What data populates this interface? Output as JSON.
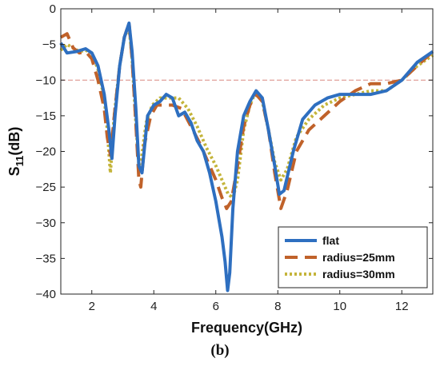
{
  "caption": "(b)",
  "chart_data": {
    "type": "line",
    "xlabel": "Frequency(GHz)",
    "ylabel_main": "S",
    "ylabel_sub": "11",
    "ylabel_unit": "(dB)",
    "xlim": [
      1,
      13
    ],
    "ylim": [
      -40,
      0
    ],
    "xticks": [
      2,
      4,
      6,
      8,
      10,
      12
    ],
    "yticks": [
      0,
      -5,
      -10,
      -15,
      -20,
      -25,
      -30,
      -35,
      -40
    ],
    "reference_line": {
      "y": -10,
      "color": "#d98880"
    },
    "legend": {
      "placement": "bottom-right"
    },
    "series": [
      {
        "name": "flat",
        "color": "#2e6fc0",
        "style": "solid",
        "x": [
          1.0,
          1.2,
          1.5,
          1.8,
          2.0,
          2.2,
          2.4,
          2.55,
          2.65,
          2.75,
          2.9,
          3.05,
          3.2,
          3.3,
          3.42,
          3.52,
          3.62,
          3.8,
          4.0,
          4.2,
          4.4,
          4.6,
          4.8,
          5.0,
          5.2,
          5.4,
          5.6,
          5.8,
          6.0,
          6.2,
          6.3,
          6.38,
          6.45,
          6.55,
          6.7,
          6.9,
          7.1,
          7.3,
          7.5,
          7.7,
          7.9,
          8.05,
          8.2,
          8.5,
          8.8,
          9.2,
          9.6,
          10.0,
          10.5,
          11.0,
          11.5,
          12.0,
          12.5,
          13.0
        ],
        "y": [
          -4.8,
          -6.2,
          -6.0,
          -5.6,
          -6.2,
          -8.0,
          -12.0,
          -17.0,
          -21.0,
          -15.0,
          -8.0,
          -4.0,
          -2.0,
          -6.0,
          -14.0,
          -22.0,
          -23.0,
          -15.0,
          -13.5,
          -13.0,
          -12.0,
          -12.5,
          -15.0,
          -14.5,
          -16.0,
          -18.5,
          -20.0,
          -23.0,
          -27.0,
          -32.0,
          -35.5,
          -39.5,
          -37.0,
          -28.0,
          -20.0,
          -15.0,
          -13.0,
          -11.5,
          -12.5,
          -17.0,
          -22.0,
          -26.0,
          -25.5,
          -20.0,
          -15.5,
          -13.5,
          -12.5,
          -12.0,
          -12.0,
          -12.0,
          -11.5,
          -10.0,
          -7.5,
          -6.0
        ]
      },
      {
        "name": "radius=25mm",
        "color": "#c0622a",
        "style": "dash",
        "x": [
          1.0,
          1.2,
          1.4,
          1.6,
          1.8,
          2.0,
          2.2,
          2.4,
          2.5,
          2.6,
          2.75,
          2.9,
          3.05,
          3.2,
          3.3,
          3.42,
          3.52,
          3.58,
          3.7,
          3.9,
          4.1,
          4.3,
          4.6,
          4.9,
          5.2,
          5.5,
          5.8,
          6.0,
          6.2,
          6.35,
          6.5,
          6.7,
          6.9,
          7.1,
          7.3,
          7.5,
          7.7,
          7.9,
          8.1,
          8.3,
          8.6,
          9.0,
          9.5,
          10.0,
          10.5,
          11.0,
          11.5,
          12.0,
          12.5,
          13.0
        ],
        "y": [
          -4.0,
          -3.5,
          -5.5,
          -6.2,
          -6.0,
          -7.0,
          -10.0,
          -14.0,
          -18.0,
          -20.5,
          -14.0,
          -8.0,
          -4.0,
          -2.0,
          -7.0,
          -16.0,
          -24.0,
          -25.0,
          -19.0,
          -15.0,
          -13.5,
          -13.5,
          -13.5,
          -14.0,
          -16.5,
          -19.0,
          -22.0,
          -24.0,
          -26.5,
          -28.0,
          -27.0,
          -22.0,
          -16.5,
          -13.5,
          -12.0,
          -13.0,
          -17.0,
          -23.0,
          -28.0,
          -25.5,
          -20.0,
          -17.0,
          -15.0,
          -13.0,
          -11.5,
          -10.5,
          -10.5,
          -10.0,
          -8.0,
          -6.0
        ]
      },
      {
        "name": "radius=30mm",
        "color": "#c4b43a",
        "style": "dot",
        "x": [
          1.0,
          1.2,
          1.4,
          1.6,
          1.8,
          2.0,
          2.2,
          2.4,
          2.5,
          2.6,
          2.72,
          2.9,
          3.05,
          3.2,
          3.3,
          3.42,
          3.52,
          3.6,
          3.75,
          3.95,
          4.2,
          4.5,
          4.8,
          5.1,
          5.4,
          5.7,
          6.0,
          6.2,
          6.4,
          6.55,
          6.7,
          6.9,
          7.1,
          7.3,
          7.5,
          7.7,
          7.9,
          8.1,
          8.3,
          8.6,
          9.0,
          9.5,
          10.0,
          10.5,
          11.0,
          11.5,
          12.0,
          12.5,
          13.0
        ],
        "y": [
          -5.8,
          -5.0,
          -5.5,
          -6.0,
          -5.8,
          -6.2,
          -8.5,
          -12.5,
          -17.0,
          -23.0,
          -15.0,
          -8.0,
          -4.0,
          -2.5,
          -7.0,
          -16.0,
          -22.0,
          -21.0,
          -16.0,
          -13.5,
          -12.5,
          -12.5,
          -12.5,
          -14.0,
          -16.5,
          -19.5,
          -22.0,
          -24.0,
          -26.0,
          -26.5,
          -24.0,
          -17.0,
          -13.5,
          -11.5,
          -13.0,
          -17.0,
          -21.5,
          -24.0,
          -22.5,
          -18.0,
          -15.5,
          -13.5,
          -12.5,
          -12.0,
          -11.5,
          -11.5,
          -10.0,
          -8.0,
          -6.5
        ]
      }
    ]
  }
}
